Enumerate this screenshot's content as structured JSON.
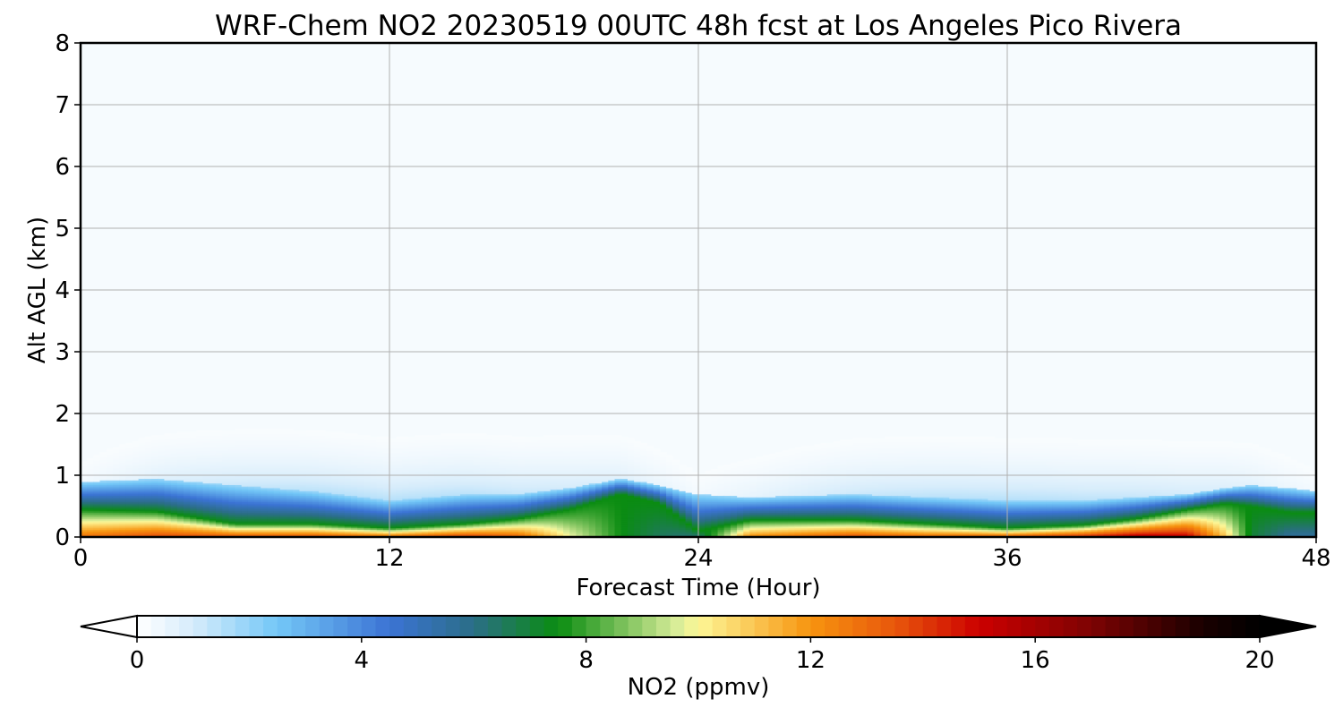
{
  "chart_data": {
    "type": "heatmap",
    "title": "WRF-Chem NO2  20230519 00UTC 48h fcst at Los Angeles Pico Rivera",
    "xlabel": "Forecast Time (Hour)",
    "ylabel": "Alt AGL (km)",
    "xlim": [
      0,
      48
    ],
    "ylim": [
      0,
      8
    ],
    "xticks": [
      "0",
      "12",
      "24",
      "36",
      "48"
    ],
    "yticks": [
      "0",
      "1",
      "2",
      "3",
      "4",
      "5",
      "6",
      "7",
      "8"
    ],
    "grid": true,
    "colorbar": {
      "label": "NO2  (ppmv)",
      "range": [
        0,
        20
      ],
      "ticks": [
        "0",
        "4",
        "8",
        "12",
        "16",
        "20"
      ],
      "extend": "both",
      "colors": [
        {
          "v": 0,
          "c": "#ffffff"
        },
        {
          "v": 1,
          "c": "#d6ecfb"
        },
        {
          "v": 2.5,
          "c": "#73c7f7"
        },
        {
          "v": 4.5,
          "c": "#3b73d4"
        },
        {
          "v": 6,
          "c": "#2b6e86"
        },
        {
          "v": 7.5,
          "c": "#0a8c11"
        },
        {
          "v": 9.6,
          "c": "#d7ec98"
        },
        {
          "v": 10,
          "c": "#fdf796"
        },
        {
          "v": 12,
          "c": "#f7940f"
        },
        {
          "v": 13.5,
          "c": "#e8570c"
        },
        {
          "v": 15,
          "c": "#cc0000"
        },
        {
          "v": 17,
          "c": "#7d0303"
        },
        {
          "v": 19,
          "c": "#190000"
        },
        {
          "v": 20,
          "c": "#000000"
        }
      ]
    },
    "profile": {
      "time": [
        0,
        3,
        6,
        9,
        12,
        15,
        17,
        19,
        21,
        22.5,
        24,
        26,
        30,
        33,
        36,
        39,
        41,
        43,
        44.5,
        45.5,
        47,
        48
      ],
      "mixing_height_km": [
        0.9,
        0.95,
        0.85,
        0.75,
        0.6,
        0.7,
        0.7,
        0.8,
        0.95,
        0.85,
        0.7,
        0.65,
        0.7,
        0.65,
        0.6,
        0.6,
        0.65,
        0.7,
        0.8,
        0.85,
        0.8,
        0.75
      ],
      "surface_no2_ppmv": [
        13,
        14,
        14,
        14,
        13.5,
        14.5,
        13.5,
        10,
        7.5,
        6.5,
        6,
        12.5,
        14,
        13.5,
        14,
        15,
        16,
        15.5,
        11,
        7,
        5.5,
        5.5
      ],
      "hot_depth_km": [
        0.45,
        0.42,
        0.22,
        0.22,
        0.15,
        0.22,
        0.3,
        0.45,
        0.7,
        0.55,
        0.1,
        0.28,
        0.28,
        0.22,
        0.15,
        0.2,
        0.3,
        0.45,
        0.55,
        0.5,
        0.4,
        0.4
      ]
    }
  }
}
